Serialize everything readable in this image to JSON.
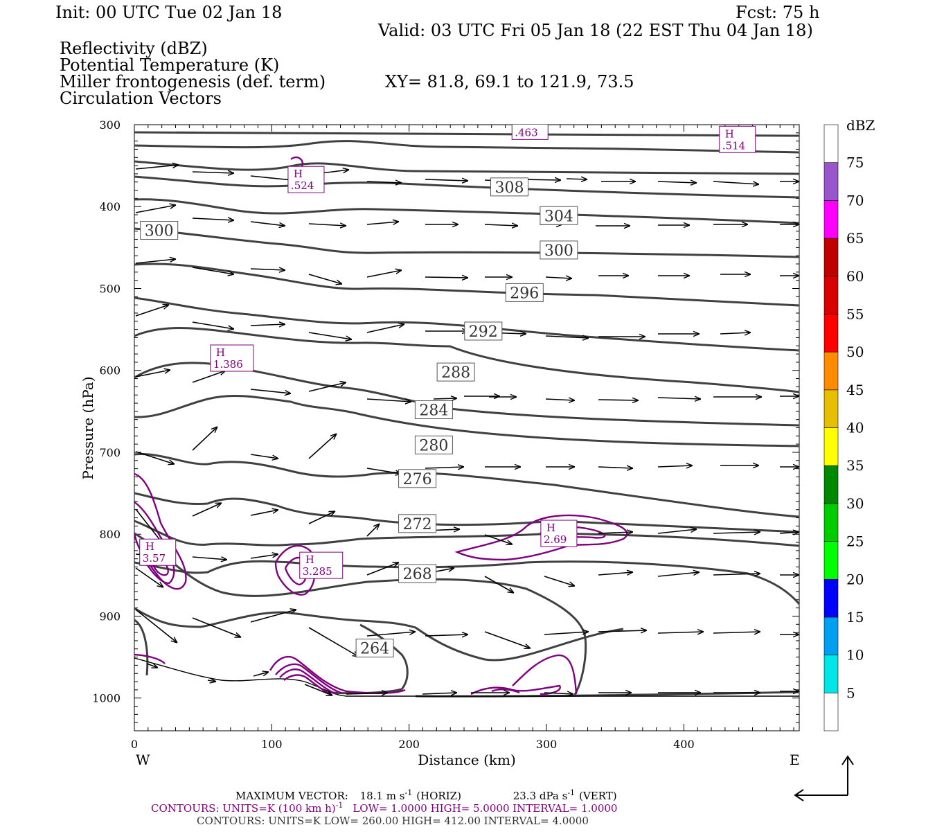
{
  "header": {
    "init": "Init: 00 UTC Tue 02 Jan 18",
    "fcst": "Fcst:   75 h",
    "valid": "Valid: 03 UTC Fri 05 Jan 18 (22 EST Thu 04 Jan 18)",
    "var_reflectivity": "Reflectivity (dBZ)",
    "var_theta": "Potential Temperature (K)",
    "var_miller": "Miller frontogenesis (def. term)",
    "xy": "XY=  81.8, 69.1 to 121.9, 73.5",
    "var_vectors": "Circulation Vectors"
  },
  "colors": {
    "theta": "#404040",
    "frontogenesis": "#800080",
    "vectors": "#000000"
  },
  "chart_data": {
    "type": "cross-section",
    "x_label": "Distance (km)",
    "y_label": "Pressure (hPa)",
    "xlim": [
      0,
      484
    ],
    "ylim": [
      1040,
      300
    ],
    "x_ticks": [
      "0",
      "100",
      "200",
      "300",
      "400"
    ],
    "y_ticks": [
      "300",
      "400",
      "500",
      "600",
      "700",
      "800",
      "900",
      "1000"
    ],
    "x_tick_values": [
      0,
      100,
      200,
      300,
      400
    ],
    "y_tick_values": [
      300,
      400,
      500,
      600,
      700,
      800,
      900,
      1000
    ],
    "west_label": "W",
    "east_label": "E",
    "theta_labels": [
      {
        "text": "308",
        "x": 273,
        "p": 376
      },
      {
        "text": "304",
        "x": 309,
        "p": 411
      },
      {
        "text": "300",
        "x": 18,
        "p": 429
      },
      {
        "text": "300",
        "x": 309,
        "p": 453
      },
      {
        "text": "296",
        "x": 284,
        "p": 505
      },
      {
        "text": "292",
        "x": 254,
        "p": 552
      },
      {
        "text": "288",
        "x": 234,
        "p": 602
      },
      {
        "text": "284",
        "x": 218,
        "p": 648
      },
      {
        "text": "280",
        "x": 218,
        "p": 691
      },
      {
        "text": "276",
        "x": 206,
        "p": 732
      },
      {
        "text": "272",
        "x": 206,
        "p": 787
      },
      {
        "text": "268",
        "x": 206,
        "p": 848
      },
      {
        "text": "264",
        "x": 175,
        "p": 939
      }
    ],
    "frontogenesis_maxima": [
      {
        "label": "H",
        "value": ".463",
        "x": 288,
        "p": 302
      },
      {
        "label": "H",
        "value": ".514",
        "x": 439,
        "p": 318
      },
      {
        "label": "H",
        "value": ".524",
        "x": 125,
        "p": 367
      },
      {
        "label": "H",
        "value": "1.386",
        "x": 71,
        "p": 585
      },
      {
        "label": "H",
        "value": "2.69",
        "x": 309,
        "p": 799
      },
      {
        "label": "H",
        "value": "3.57",
        "x": 17,
        "p": 822
      },
      {
        "label": "H",
        "value": "3.285",
        "x": 136,
        "p": 838
      }
    ],
    "colorbar": {
      "title": "dBZ",
      "levels": [
        "5",
        "10",
        "15",
        "20",
        "25",
        "30",
        "35",
        "40",
        "45",
        "50",
        "55",
        "60",
        "65",
        "70",
        "75"
      ],
      "colors": [
        "#ffffff",
        "#00e5e5",
        "#00a0f0",
        "#0000ff",
        "#00ff00",
        "#00cc00",
        "#008800",
        "#ffff00",
        "#e5bf00",
        "#ff8c00",
        "#ff0000",
        "#d80000",
        "#c00000",
        "#ff00ff",
        "#9955cc",
        "#ffffff"
      ]
    }
  },
  "footer": {
    "maxvec_label": "MAXIMUM VECTOR:",
    "horiz_val": "18.1 m s",
    "horiz_sup": "-1",
    "horiz_unit": "(HORIZ)",
    "vert_val": "23.3 dPa s",
    "vert_sup": "-1",
    "vert_unit": "(VERT)",
    "front_a": "CONTOURS:  UNITS=K (100 km h)",
    "front_sup": "-1",
    "front_b": "LOW=   1.0000        HIGH=   5.0000       INTERVAL=    1.0000",
    "theta_line": "CONTOURS:  UNITS=K   LOW=   260.00        HIGH=   412.00        INTERVAL=     4.0000"
  }
}
